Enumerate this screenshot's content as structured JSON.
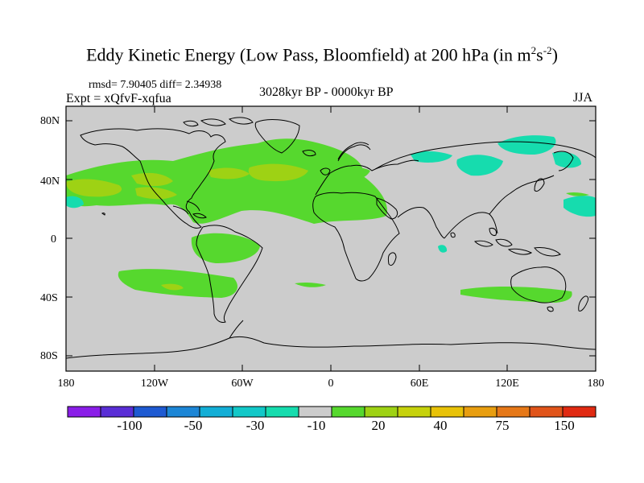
{
  "title": {
    "main": "Eddy Kinetic Energy (Low Pass, Bloomfield) at 200 hPa (in m",
    "sup1": "2",
    "mid": "s",
    "sup2": "-2",
    "close": ")"
  },
  "stats": "rmsd= 7.90405 diff= 2.34938",
  "experiment": "Expt = xQfvF-xqfua",
  "period": "3028kyr BP - 0000kyr BP",
  "season": "JJA",
  "axes": {
    "y_ticks": [
      "80N",
      "40N",
      "0",
      "40S",
      "80S"
    ],
    "x_ticks": [
      "180",
      "120W",
      "60W",
      "0",
      "60E",
      "120E",
      "180"
    ]
  },
  "colorbar": {
    "colors": [
      "#8a1ee8",
      "#5a2ed6",
      "#1e5ad2",
      "#1c86d6",
      "#13aed6",
      "#12c8c8",
      "#16dcae",
      "#cccccc",
      "#56d82e",
      "#9ed214",
      "#c6d20c",
      "#e8c208",
      "#e89e10",
      "#e67818",
      "#e0541a",
      "#e02a12"
    ],
    "labels": [
      "-100",
      "-50",
      "-30",
      "-10",
      "20",
      "40",
      "75",
      "150"
    ]
  },
  "palette": {
    "land_ocean": "#cccccc",
    "positive_low": "#56d82e",
    "positive_mid": "#9ed214",
    "negative": "#16dcae"
  }
}
